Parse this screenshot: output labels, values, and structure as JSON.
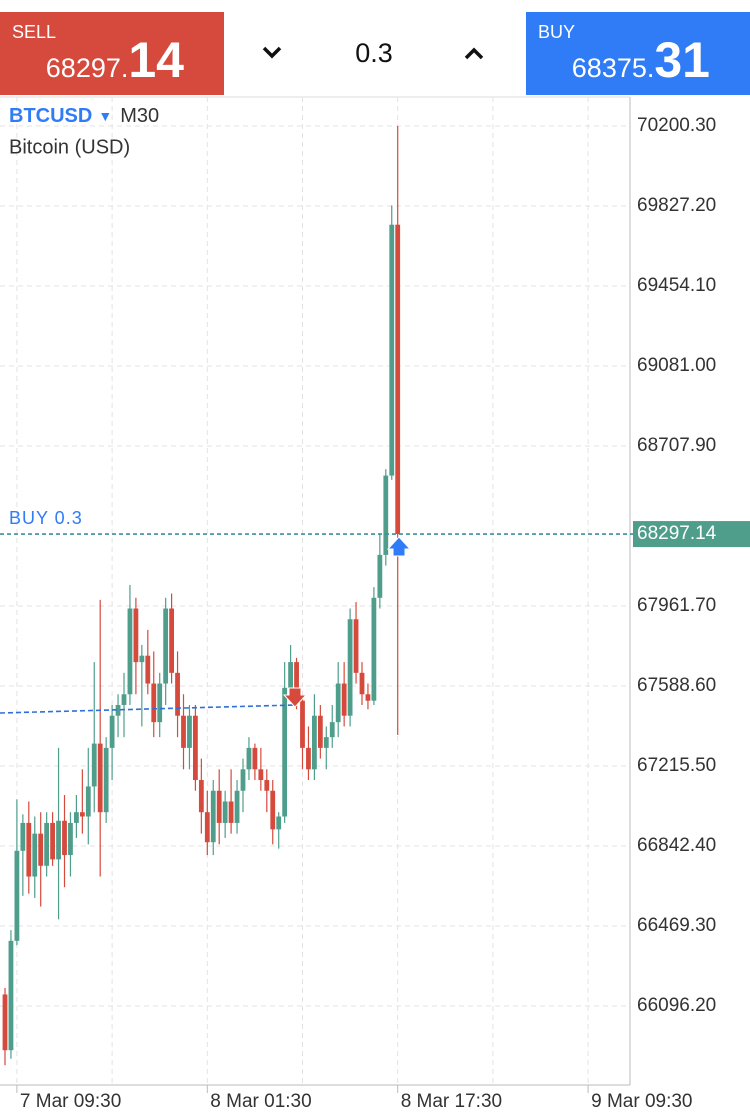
{
  "trade_bar": {
    "sell": {
      "label": "SELL",
      "price_main": "68297.",
      "price_big": "14"
    },
    "volume": "0.3",
    "buy": {
      "label": "BUY",
      "price_main": "68375.",
      "price_big": "31"
    }
  },
  "chart_data": {
    "type": "candlestick",
    "symbol": "BTCUSD",
    "timeframe": "M30",
    "subtitle": "Bitcoin (USD)",
    "position_label": "BUY 0.3",
    "current_price": {
      "value": 68297.14,
      "label": "68297.14"
    },
    "up_color": "#4f9e8c",
    "down_color": "#d64a3d",
    "grid": true,
    "categories": [
      null,
      null,
      "7 Mar 09:30",
      null,
      null,
      null,
      null,
      null,
      null,
      null,
      null,
      null,
      null,
      null,
      null,
      null,
      null,
      null,
      null,
      null,
      null,
      null,
      null,
      null,
      null,
      null,
      null,
      null,
      null,
      null,
      null,
      null,
      null,
      null,
      "8 Mar 01:30",
      null,
      null,
      null,
      null,
      null,
      null,
      null,
      null,
      null,
      null,
      null,
      null,
      null,
      null,
      null,
      null,
      null,
      null,
      null,
      null,
      null,
      null,
      null,
      null,
      null,
      null,
      null,
      null,
      null,
      null,
      null,
      "8 Mar 17:30",
      null,
      null,
      null,
      null,
      null,
      null,
      null,
      null,
      null,
      null,
      null,
      null,
      null,
      null,
      null,
      null,
      null,
      null,
      null,
      null,
      null,
      null,
      null,
      null,
      null,
      null,
      null,
      null,
      null,
      null,
      null,
      "9 Mar 09:30"
    ],
    "open": [
      66150,
      65890,
      66400,
      66820,
      66950,
      66700,
      66900,
      66750,
      66950,
      66780,
      66960,
      66800,
      66950,
      67000,
      66980,
      67120,
      67320,
      67000,
      67300,
      67450,
      67500,
      67550,
      67950,
      67700,
      67730,
      67600,
      67420,
      67600,
      67950,
      67650,
      67450,
      67300,
      67450,
      67150,
      67000,
      66860,
      67100,
      66950,
      67050,
      66950,
      67100,
      67200,
      67300,
      67200,
      67150,
      67100,
      66920,
      66980,
      67580,
      67700,
      67520,
      67300,
      67200,
      67450,
      67300,
      67350,
      67420,
      67600,
      67450,
      67900,
      67650,
      67550,
      67520,
      68000,
      68200,
      68570,
      69740,
      null,
      null,
      null,
      null,
      null,
      null,
      null,
      null,
      null,
      null,
      null,
      null,
      null,
      null,
      null,
      null,
      null,
      null,
      null,
      null,
      null,
      null,
      null,
      null,
      null,
      null,
      null,
      null,
      null,
      null,
      null,
      null
    ],
    "high": [
      66180,
      66450,
      67060,
      66990,
      67050,
      66980,
      67000,
      67000,
      67000,
      67300,
      67080,
      67000,
      67080,
      67200,
      67300,
      67700,
      67990,
      67350,
      67500,
      67550,
      67650,
      68060,
      68000,
      67780,
      67850,
      67750,
      67650,
      68000,
      68020,
      67750,
      67550,
      67500,
      67500,
      67250,
      67100,
      67150,
      67200,
      67100,
      67200,
      67150,
      67250,
      67350,
      67320,
      67300,
      67200,
      67150,
      67000,
      67700,
      67780,
      67720,
      67550,
      67400,
      67550,
      67500,
      67400,
      67500,
      67700,
      67700,
      67950,
      67980,
      67700,
      67600,
      68050,
      68300,
      68600,
      69830,
      70200.3,
      null,
      null,
      null,
      null,
      null,
      null,
      null,
      null,
      null,
      null,
      null,
      null,
      null,
      null,
      null,
      null,
      null,
      null,
      null,
      null,
      null,
      null,
      null,
      null,
      null,
      null,
      null,
      null,
      null,
      null,
      null,
      null
    ],
    "low": [
      65820,
      65850,
      66380,
      66610,
      66620,
      66600,
      66560,
      66700,
      66750,
      66500,
      66650,
      66700,
      66880,
      66900,
      66850,
      67000,
      66700,
      66950,
      67150,
      67350,
      67350,
      67500,
      67550,
      67400,
      67550,
      67350,
      67350,
      67500,
      67600,
      67350,
      67200,
      67200,
      67100,
      66900,
      66800,
      66800,
      66850,
      66880,
      66900,
      66900,
      67000,
      67150,
      67150,
      67100,
      67000,
      66850,
      66830,
      66950,
      67550,
      67480,
      67200,
      67150,
      67150,
      67250,
      67200,
      67300,
      67350,
      67400,
      67400,
      67600,
      67500,
      67480,
      67500,
      67950,
      68150,
      68550,
      67360,
      null,
      null,
      null,
      null,
      null,
      null,
      null,
      null,
      null,
      null,
      null,
      null,
      null,
      null,
      null,
      null,
      null,
      null,
      null,
      null,
      null,
      null,
      null,
      null,
      null,
      null,
      null,
      null,
      null,
      null,
      null,
      null
    ],
    "close": [
      65890,
      66400,
      66820,
      66950,
      66700,
      66900,
      66750,
      66950,
      66780,
      66960,
      66800,
      66950,
      67000,
      66980,
      67120,
      67320,
      67000,
      67300,
      67450,
      67500,
      67550,
      67950,
      67700,
      67730,
      67600,
      67420,
      67600,
      67950,
      67650,
      67450,
      67300,
      67450,
      67150,
      67000,
      66860,
      67100,
      66950,
      67050,
      66950,
      67100,
      67200,
      67300,
      67200,
      67150,
      67100,
      66920,
      66980,
      67580,
      67700,
      67520,
      67300,
      67200,
      67450,
      67300,
      67350,
      67420,
      67600,
      67450,
      67900,
      67650,
      67550,
      67520,
      68000,
      68200,
      68570,
      69740,
      68297.14,
      null,
      null,
      null,
      null,
      null,
      null,
      null,
      null,
      null,
      null,
      null,
      null,
      null,
      null,
      null,
      null,
      null,
      null,
      null,
      null,
      null,
      null,
      null,
      null,
      null,
      null,
      null,
      null,
      null,
      null,
      null,
      null
    ],
    "ylim": [
      65727.7,
      70335.6
    ],
    "yticks": [
      {
        "value": 66096.2,
        "label": "66096.20"
      },
      {
        "value": 66469.3,
        "label": "66469.30"
      },
      {
        "value": 66842.4,
        "label": "66842.40"
      },
      {
        "value": 67215.5,
        "label": "67215.50"
      },
      {
        "value": 67588.6,
        "label": "67588.60"
      },
      {
        "value": 67961.7,
        "label": "67961.70"
      },
      {
        "value": 68707.9,
        "label": "68707.90"
      },
      {
        "value": 69081,
        "label": "69081.00"
      },
      {
        "value": 69454.1,
        "label": "69454.10"
      },
      {
        "value": 69827.2,
        "label": "69827.20"
      },
      {
        "value": 70200.3,
        "label": "70200.30"
      }
    ]
  }
}
